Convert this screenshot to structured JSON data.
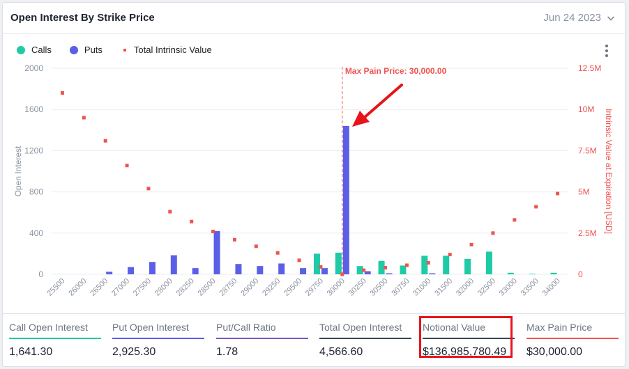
{
  "header": {
    "title": "Open Interest By Strike Price",
    "date": "Jun 24 2023"
  },
  "legend": [
    {
      "label": "Calls",
      "color": "#1ecba6",
      "shape": "circle"
    },
    {
      "label": "Puts",
      "color": "#5b5fe8",
      "shape": "circle"
    },
    {
      "label": "Total Intrinsic Value",
      "color": "#ef5350",
      "shape": "square"
    }
  ],
  "chart_data": {
    "type": "bar",
    "categories": [
      "25500",
      "26000",
      "26500",
      "27000",
      "27500",
      "28000",
      "28250",
      "28500",
      "28750",
      "29000",
      "29250",
      "29500",
      "29750",
      "30000",
      "30250",
      "30500",
      "30750",
      "31000",
      "31500",
      "32000",
      "32500",
      "33000",
      "33500",
      "34000"
    ],
    "series": [
      {
        "name": "Calls",
        "axis": "left",
        "color": "#1ecba6",
        "values": [
          0,
          0,
          0,
          0,
          0,
          0,
          0,
          0,
          0,
          0,
          0,
          0,
          200,
          210,
          80,
          130,
          85,
          180,
          180,
          150,
          220,
          15,
          5,
          15
        ]
      },
      {
        "name": "Puts",
        "axis": "left",
        "color": "#5b5fe8",
        "values": [
          0,
          0,
          25,
          70,
          120,
          185,
          60,
          420,
          100,
          80,
          105,
          60,
          60,
          1440,
          30,
          10,
          0,
          10,
          0,
          0,
          0,
          0,
          0,
          0
        ]
      },
      {
        "name": "Total Intrinsic Value",
        "axis": "right",
        "type": "scatter",
        "color": "#ef5350",
        "values": [
          11000000,
          9500000,
          8100000,
          6600000,
          5200000,
          3800000,
          3200000,
          2600000,
          2100000,
          1700000,
          1300000,
          850000,
          450000,
          0,
          250000,
          400000,
          550000,
          700000,
          1200000,
          1800000,
          2500000,
          3300000,
          4100000,
          4900000
        ]
      }
    ],
    "yleft": {
      "label": "Open Interest",
      "ticks": [
        "2000",
        "1600",
        "1200",
        "800",
        "400",
        "0"
      ],
      "lim": [
        0,
        2000
      ]
    },
    "yright": {
      "label": "Intrinsic Value at Expiration [USD]",
      "ticks": [
        "12.5M",
        "10M",
        "7.5M",
        "5M",
        "2.5M",
        "0"
      ],
      "lim": [
        0,
        12500000
      ]
    },
    "max_pain_category": "30000",
    "max_pain_label": "Max Pain Price: 30,000.00",
    "grid": "horizontal"
  },
  "stats": [
    {
      "label": "Call Open Interest",
      "value": "1,641.30",
      "color": "#1ecba6"
    },
    {
      "label": "Put Open Interest",
      "value": "2,925.30",
      "color": "#5b5fe8"
    },
    {
      "label": "Put/Call Ratio",
      "value": "1.78",
      "color": "#7e57c2"
    },
    {
      "label": "Total Open Interest",
      "value": "4,566.60",
      "color": "#37474f"
    },
    {
      "label": "Notional Value",
      "value": "$136,985,780.49",
      "color": "#37474f"
    },
    {
      "label": "Max Pain Price",
      "value": "$30,000.00",
      "color": "#ef5350"
    }
  ]
}
